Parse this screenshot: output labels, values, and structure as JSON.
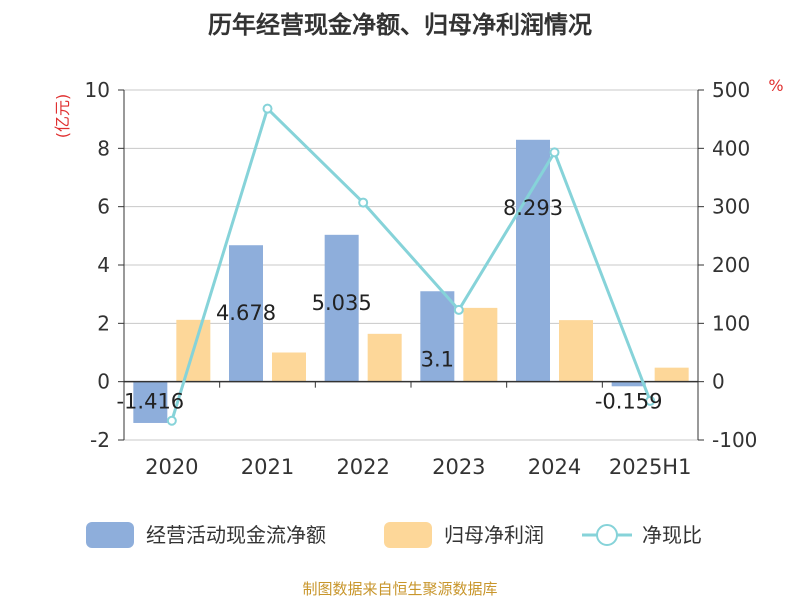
{
  "chart_data": {
    "type": "bar",
    "title": "历年经营现金净额、归母净利润情况",
    "categories": [
      "2020",
      "2021",
      "2022",
      "2023",
      "2024",
      "2025H1"
    ],
    "series": [
      {
        "name": "经营活动现金流净额",
        "kind": "bar",
        "axis": "left",
        "color": "#8eaedb",
        "values": [
          -1.416,
          4.678,
          5.035,
          3.1,
          8.293,
          -0.159
        ],
        "labels": [
          "-1.416",
          "4.678",
          "5.035",
          "3.1",
          "8.293",
          "-0.159"
        ]
      },
      {
        "name": "归母净利润",
        "kind": "bar",
        "axis": "left",
        "color": "#fdd799",
        "values": [
          2.12,
          1.0,
          1.64,
          2.53,
          2.11,
          0.48
        ]
      },
      {
        "name": "净现比",
        "kind": "line",
        "axis": "right",
        "color": "#86d3d9",
        "values": [
          -67,
          468,
          307,
          123,
          393,
          -33
        ]
      }
    ],
    "y_left": {
      "label": "(亿元)",
      "min": -2,
      "max": 10,
      "ticks": [
        "-2",
        "0",
        "2",
        "4",
        "6",
        "8",
        "10"
      ]
    },
    "y_right": {
      "label": "%",
      "min": -100,
      "max": 500,
      "ticks": [
        "-100",
        "0",
        "100",
        "200",
        "300",
        "400",
        "500"
      ]
    },
    "grid": true,
    "legend_position": "bottom",
    "source": "制图数据来自恒生聚源数据库"
  }
}
